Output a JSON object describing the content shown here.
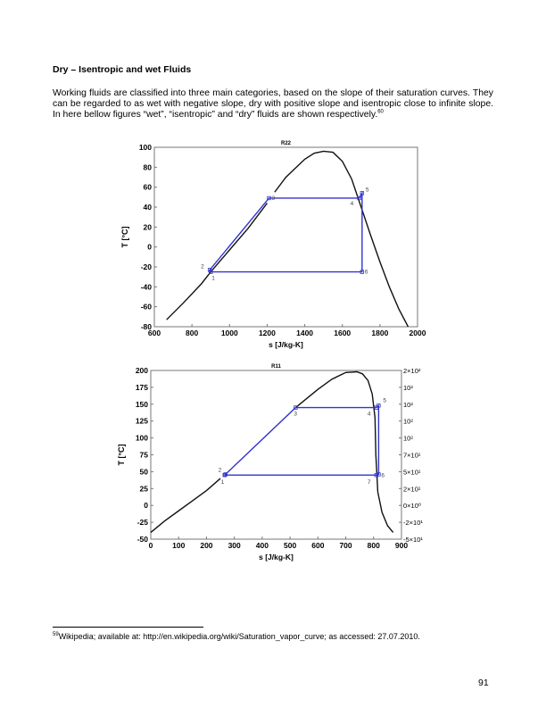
{
  "heading": "Dry – Isentropic and wet Fluids",
  "paragraph": "Working fluids are classified into three main categories, based on the slope of their saturation curves. They can be regarded to as wet with negative slope, dry with positive slope and isentropic close to infinite slope. In here bellow figures “wet”, “isentropic” and “dry” fluids are shown respectively.",
  "paragraph_footnote_ref": "60",
  "footnote": {
    "number": "59",
    "text": "Wikipedia; available at: http://en.wikipedia.org/wiki/Saturation_vapor_curve; as accessed: 27.07.2010."
  },
  "page_number": "91",
  "chart_data": [
    {
      "type": "line",
      "title": "R22",
      "xlabel": "s [J/kg-K]",
      "ylabel": "T [°C]",
      "xlim": [
        600,
        2000
      ],
      "ylim": [
        -80,
        100
      ],
      "xticks": [
        "600",
        "800",
        "1000",
        "1200",
        "1400",
        "1600",
        "1800",
        "2000"
      ],
      "yticks": [
        "-80",
        "-60",
        "-40",
        "-20",
        "0",
        "20",
        "40",
        "60",
        "80",
        "100"
      ],
      "grid": false,
      "colors": {
        "saturation": "#111111",
        "cycle": "#3333cc"
      },
      "saturation_curve": [
        [
          [
            665,
            -73
          ],
          [
            750,
            -57
          ],
          [
            850,
            -37
          ],
          [
            900,
            -25
          ],
          [
            1000,
            -3
          ],
          [
            1100,
            19
          ],
          [
            1200,
            44
          ]
        ],
        [
          [
            1240,
            55
          ],
          [
            1300,
            70
          ],
          [
            1400,
            88
          ],
          [
            1450,
            94
          ],
          [
            1500,
            96
          ],
          [
            1550,
            95
          ],
          [
            1600,
            86
          ],
          [
            1650,
            68
          ],
          [
            1700,
            40
          ],
          [
            1750,
            12
          ],
          [
            1800,
            -15
          ],
          [
            1850,
            -40
          ],
          [
            1900,
            -62
          ],
          [
            1950,
            -80
          ]
        ]
      ],
      "cycle_points": [
        {
          "label": "1",
          "s": 900,
          "T": -25
        },
        {
          "label": "2",
          "s": 895,
          "T": -23
        },
        {
          "label": "3",
          "s": 1210,
          "T": 49
        },
        {
          "label": "4",
          "s": 1690,
          "T": 49
        },
        {
          "label": "5",
          "s": 1705,
          "T": 54
        },
        {
          "label": "6",
          "s": 1705,
          "T": -25
        }
      ],
      "cycle_path": [
        "1",
        "2",
        "3",
        "4",
        "5",
        "6",
        "1"
      ]
    },
    {
      "type": "line",
      "title": "R11",
      "xlabel": "s [J/kg-K]",
      "ylabel": "T [°C]",
      "xlim": [
        0,
        900
      ],
      "ylim": [
        -50,
        200
      ],
      "xticks": [
        "0",
        "100",
        "200",
        "300",
        "400",
        "500",
        "600",
        "700",
        "800",
        "900"
      ],
      "yticks": [
        "-50",
        "-25",
        "0",
        "25",
        "50",
        "75",
        "100",
        "125",
        "150",
        "175",
        "200"
      ],
      "y2ticks": [
        "-5×10¹",
        "-2×10¹",
        "0×10⁰",
        "2×10¹",
        "5×10¹",
        "7×10¹",
        "10²",
        "10²",
        "10²",
        "10²",
        "2×10²"
      ],
      "grid": false,
      "colors": {
        "saturation": "#111111",
        "cycle": "#3333cc"
      },
      "saturation_curve": [
        [
          [
            0,
            -40
          ],
          [
            50,
            -23
          ],
          [
            100,
            -8
          ],
          [
            150,
            7
          ],
          [
            200,
            22
          ],
          [
            250,
            40
          ]
        ],
        [
          [
            520,
            145
          ],
          [
            600,
            172
          ],
          [
            650,
            187
          ],
          [
            700,
            197
          ],
          [
            740,
            198
          ],
          [
            760,
            195
          ],
          [
            780,
            185
          ],
          [
            795,
            165
          ],
          [
            805,
            130
          ],
          [
            808,
            75
          ],
          [
            815,
            20
          ],
          [
            830,
            -10
          ],
          [
            850,
            -30
          ],
          [
            870,
            -40
          ]
        ]
      ],
      "cycle_points": [
        {
          "label": "1",
          "s": 265,
          "T": 45
        },
        {
          "label": "2",
          "s": 268,
          "T": 46
        },
        {
          "label": "3",
          "s": 520,
          "T": 145
        },
        {
          "label": "4",
          "s": 810,
          "T": 145
        },
        {
          "label": "5",
          "s": 818,
          "T": 148
        },
        {
          "label": "6",
          "s": 818,
          "T": 46
        },
        {
          "label": "7",
          "s": 810,
          "T": 45
        }
      ],
      "cycle_path": [
        "1",
        "2",
        "3",
        "4",
        "5",
        "6",
        "7",
        "1"
      ]
    }
  ]
}
